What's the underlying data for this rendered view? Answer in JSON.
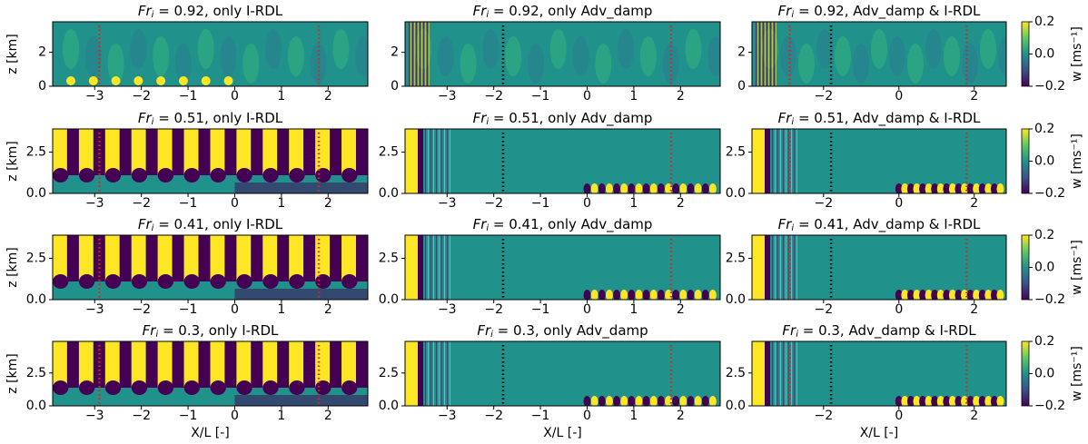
{
  "chart_data": [
    {
      "type": "heatmap",
      "title": {
        "var": "Fr",
        "sub": "i",
        "text": " = 0.92, only I-RDL"
      },
      "xlim": [
        -3.9,
        2.85
      ],
      "ylim": [
        0,
        3.8
      ],
      "xticks": [
        {
          "value": -3,
          "label": "−3"
        },
        {
          "value": -2,
          "label": "−2"
        },
        {
          "value": -1,
          "label": "−1"
        },
        0,
        1,
        2
      ],
      "yticks": [
        0,
        2
      ],
      "ylabel": "z [km]",
      "vlines": [
        {
          "x": -2.9,
          "color": "#d62728"
        },
        {
          "x": 1.8,
          "color": "#d62728"
        }
      ]
    },
    {
      "type": "heatmap",
      "title": {
        "var": "Fr",
        "sub": "i",
        "text": " = 0.92, only Adv_damp"
      },
      "xlim": [
        -3.9,
        2.85
      ],
      "ylim": [
        0,
        3.8
      ],
      "xticks": [
        {
          "value": -3,
          "label": "−3"
        },
        {
          "value": -2,
          "label": "−2"
        },
        {
          "value": -1,
          "label": "−1"
        },
        0,
        1,
        2
      ],
      "yticks": [
        0,
        2
      ],
      "vlines": [
        {
          "x": -1.8,
          "color": "#000000"
        },
        {
          "x": 1.8,
          "color": "#d62728"
        }
      ]
    },
    {
      "type": "heatmap",
      "title": {
        "var": "Fr",
        "sub": "i",
        "text": " = 0.92, Adv_damp & I-RDL"
      },
      "xlim": [
        -3.9,
        2.85
      ],
      "ylim": [
        0,
        3.8
      ],
      "xticks": [
        {
          "value": -2,
          "label": "−2"
        },
        0,
        2
      ],
      "yticks": [
        0,
        2
      ],
      "vlines": [
        {
          "x": -2.9,
          "color": "#d62728"
        },
        {
          "x": -1.8,
          "color": "#000000"
        },
        {
          "x": 1.8,
          "color": "#d62728"
        }
      ],
      "colorbar": {
        "clim": [
          -0.2,
          0.2
        ],
        "ticks": [
          {
            "value": -0.2,
            "label": "−0.2"
          },
          {
            "value": 0,
            "label": "0.0"
          },
          0.2
        ],
        "label": "w [ms⁻¹]"
      }
    },
    {
      "type": "heatmap",
      "title": {
        "var": "Fr",
        "sub": "i",
        "text": " = 0.51, only I-RDL"
      },
      "xlim": [
        -3.9,
        2.85
      ],
      "ylim": [
        0,
        3.9
      ],
      "xticks": [
        {
          "value": -3,
          "label": "−3"
        },
        {
          "value": -2,
          "label": "−2"
        },
        {
          "value": -1,
          "label": "−1"
        },
        0,
        1,
        2
      ],
      "yticks": [
        {
          "value": 0,
          "label": "0.0"
        },
        2.5
      ],
      "ylabel": "z [km]",
      "vlines": [
        {
          "x": -2.9,
          "color": "#d62728"
        },
        {
          "x": 1.8,
          "color": "#d62728"
        }
      ]
    },
    {
      "type": "heatmap",
      "title": {
        "var": "Fr",
        "sub": "i",
        "text": " = 0.51, only Adv_damp"
      },
      "xlim": [
        -3.9,
        2.85
      ],
      "ylim": [
        0,
        3.9
      ],
      "xticks": [
        {
          "value": -3,
          "label": "−3"
        },
        {
          "value": -2,
          "label": "−2"
        },
        {
          "value": -1,
          "label": "−1"
        },
        0,
        1,
        2
      ],
      "yticks": [
        {
          "value": 0,
          "label": "0.0"
        },
        2.5
      ],
      "vlines": [
        {
          "x": -1.8,
          "color": "#000000"
        },
        {
          "x": 1.8,
          "color": "#d62728"
        }
      ]
    },
    {
      "type": "heatmap",
      "title": {
        "var": "Fr",
        "sub": "i",
        "text": " = 0.51, Adv_damp & I-RDL"
      },
      "xlim": [
        -3.9,
        2.85
      ],
      "ylim": [
        0,
        3.9
      ],
      "xticks": [
        {
          "value": -2,
          "label": "−2"
        },
        0,
        2
      ],
      "yticks": [
        {
          "value": 0,
          "label": "0.0"
        },
        2.5
      ],
      "vlines": [
        {
          "x": -2.9,
          "color": "#d62728"
        },
        {
          "x": -1.8,
          "color": "#000000"
        },
        {
          "x": 1.8,
          "color": "#d62728"
        }
      ],
      "colorbar": {
        "clim": [
          -0.2,
          0.2
        ],
        "ticks": [
          {
            "value": -0.2,
            "label": "−0.2"
          },
          {
            "value": 0,
            "label": "0.0"
          },
          0.2
        ],
        "label": "w [ms⁻¹]"
      }
    },
    {
      "type": "heatmap",
      "title": {
        "var": "Fr",
        "sub": "i",
        "text": " = 0.41, only I-RDL"
      },
      "xlim": [
        -3.9,
        2.85
      ],
      "ylim": [
        0,
        3.9
      ],
      "xticks": [
        {
          "value": -3,
          "label": "−3"
        },
        {
          "value": -2,
          "label": "−2"
        },
        {
          "value": -1,
          "label": "−1"
        },
        0,
        1,
        2
      ],
      "yticks": [
        {
          "value": 0,
          "label": "0.0"
        },
        2.5
      ],
      "ylabel": "z [km]",
      "vlines": [
        {
          "x": -2.9,
          "color": "#d62728"
        },
        {
          "x": 1.8,
          "color": "#d62728"
        }
      ]
    },
    {
      "type": "heatmap",
      "title": {
        "var": "Fr",
        "sub": "i",
        "text": " = 0.41, only Adv_damp"
      },
      "xlim": [
        -3.9,
        2.85
      ],
      "ylim": [
        0,
        3.9
      ],
      "xticks": [
        {
          "value": -3,
          "label": "−3"
        },
        {
          "value": -2,
          "label": "−2"
        },
        {
          "value": -1,
          "label": "−1"
        },
        0,
        1,
        2
      ],
      "yticks": [
        {
          "value": 0,
          "label": "0.0"
        },
        2.5
      ],
      "vlines": [
        {
          "x": -1.8,
          "color": "#000000"
        },
        {
          "x": 1.8,
          "color": "#d62728"
        }
      ]
    },
    {
      "type": "heatmap",
      "title": {
        "var": "Fr",
        "sub": "i",
        "text": " = 0.41, Adv_damp & I-RDL"
      },
      "xlim": [
        -3.9,
        2.85
      ],
      "ylim": [
        0,
        3.9
      ],
      "xticks": [
        {
          "value": -2,
          "label": "−2"
        },
        0,
        2
      ],
      "yticks": [
        {
          "value": 0,
          "label": "0.0"
        },
        2.5
      ],
      "vlines": [
        {
          "x": -2.9,
          "color": "#d62728"
        },
        {
          "x": -1.8,
          "color": "#000000"
        },
        {
          "x": 1.8,
          "color": "#d62728"
        }
      ],
      "colorbar": {
        "clim": [
          -0.2,
          0.2
        ],
        "ticks": [
          {
            "value": -0.2,
            "label": "−0.2"
          },
          {
            "value": 0,
            "label": "0.0"
          },
          0.2
        ],
        "label": "w [ms⁻¹]"
      }
    },
    {
      "type": "heatmap",
      "title": {
        "var": "Fr",
        "sub": "i",
        "text": " = 0.3, only I-RDL"
      },
      "xlim": [
        -3.9,
        2.85
      ],
      "ylim": [
        0,
        4.9
      ],
      "xticks": [
        {
          "value": -3,
          "label": "−3"
        },
        {
          "value": -2,
          "label": "−2"
        },
        {
          "value": -1,
          "label": "−1"
        },
        0,
        1,
        2
      ],
      "yticks": [
        {
          "value": 0,
          "label": "0.0"
        },
        2.5
      ],
      "ylabel": "z [km]",
      "xlabel": "X/L [-]",
      "vlines": [
        {
          "x": -2.9,
          "color": "#d62728"
        },
        {
          "x": 1.8,
          "color": "#d62728"
        }
      ]
    },
    {
      "type": "heatmap",
      "title": {
        "var": "Fr",
        "sub": "i",
        "text": " = 0.3, only Adv_damp"
      },
      "xlim": [
        -3.9,
        2.85
      ],
      "ylim": [
        0,
        4.9
      ],
      "xticks": [
        {
          "value": -3,
          "label": "−3"
        },
        {
          "value": -2,
          "label": "−2"
        },
        {
          "value": -1,
          "label": "−1"
        },
        0,
        1,
        2
      ],
      "yticks": [
        {
          "value": 0,
          "label": "0.0"
        },
        2.5
      ],
      "xlabel": "X/L [-]",
      "vlines": [
        {
          "x": -1.8,
          "color": "#000000"
        },
        {
          "x": 1.8,
          "color": "#d62728"
        }
      ]
    },
    {
      "type": "heatmap",
      "title": {
        "var": "Fr",
        "sub": "i",
        "text": " = 0.3, Adv_damp & I-RDL"
      },
      "xlim": [
        -3.9,
        2.85
      ],
      "ylim": [
        0,
        4.9
      ],
      "xticks": [
        {
          "value": -2,
          "label": "−2"
        },
        0,
        2
      ],
      "yticks": [
        {
          "value": 0,
          "label": "0.0"
        },
        2.5
      ],
      "xlabel": "X/L [-]",
      "vlines": [
        {
          "x": -2.9,
          "color": "#d62728"
        },
        {
          "x": -1.8,
          "color": "#000000"
        },
        {
          "x": 1.8,
          "color": "#d62728"
        }
      ],
      "colorbar": {
        "clim": [
          -0.2,
          0.2
        ],
        "ticks": [
          {
            "value": -0.2,
            "label": "−0.2"
          },
          {
            "value": 0,
            "label": "0.0"
          },
          0.2
        ],
        "label": "w [ms⁻¹]"
      }
    }
  ]
}
